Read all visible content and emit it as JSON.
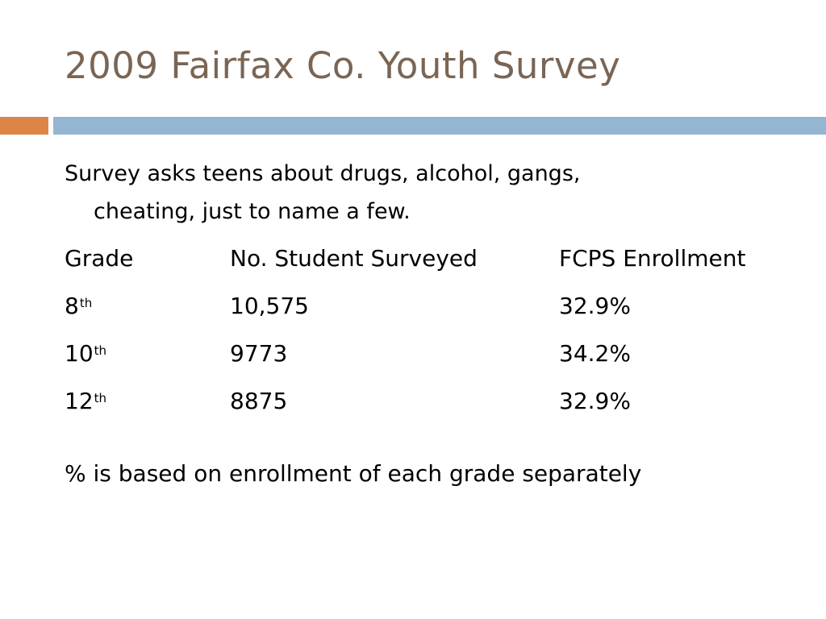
{
  "title": "2009 Fairfax Co. Youth Survey",
  "intro": {
    "line1": "Survey asks teens about drugs, alcohol, gangs,",
    "line2": "cheating, just to name a few."
  },
  "table": {
    "headers": [
      "Grade",
      "No. Student Surveyed",
      "FCPS Enrollment"
    ],
    "rows": [
      {
        "grade": "8",
        "suffix": "th",
        "surveyed": "10,575",
        "enrollment": "32.9%"
      },
      {
        "grade": "10",
        "suffix": "th",
        "surveyed": "9773",
        "enrollment": "34.2%"
      },
      {
        "grade": "12",
        "suffix": "th",
        "surveyed": "8875",
        "enrollment": "32.9%"
      }
    ]
  },
  "note": "% is based on enrollment of each grade separately",
  "colors": {
    "title": "#7a6554",
    "accent_orange": "#dd8447",
    "accent_blue": "#94b6d2"
  }
}
